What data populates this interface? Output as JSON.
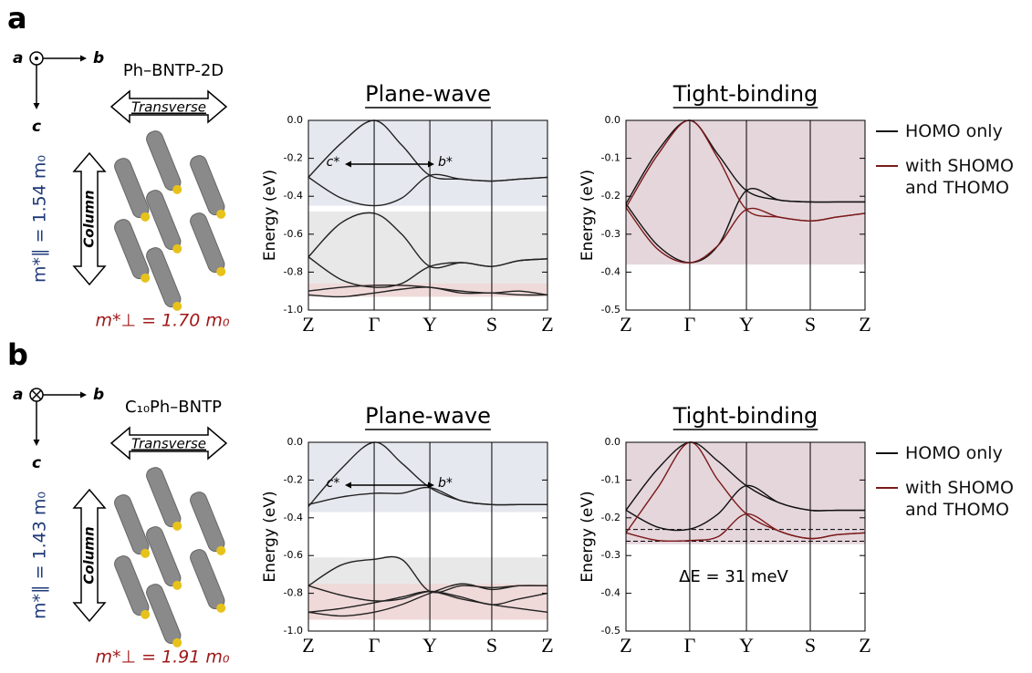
{
  "figure": {
    "panels": [
      {
        "label": "a",
        "axis_a": "a",
        "axis_b": "b",
        "axis_c": "c",
        "compound": "Ph–BNTP-2D",
        "transverse": "Transverse",
        "column": "Column",
        "m_parallel": "m*∥ = 1.54 m₀",
        "m_perp": "m*⊥ = 1.70 m₀"
      },
      {
        "label": "b",
        "axis_a": "a",
        "axis_b": "b",
        "axis_c": "c",
        "compound": "C₁₀Ph–BNTP",
        "transverse": "Transverse",
        "column": "Column",
        "m_parallel": "m*∥ = 1.43 m₀",
        "m_perp": "m*⊥ = 1.91 m₀"
      }
    ]
  },
  "chart_data": [
    {
      "type": "line",
      "title": "Plane-wave",
      "ylabel": "Energy (eV)",
      "xlim": [
        0,
        1
      ],
      "xticks": [
        {
          "value": 0,
          "label": "Z"
        },
        {
          "value": 0.275,
          "label": "Γ"
        },
        {
          "value": 0.508,
          "label": "Y"
        },
        {
          "value": 0.767,
          "label": "S"
        },
        {
          "value": 1,
          "label": "Z"
        }
      ],
      "ylim": [
        -1,
        0
      ],
      "yticks": [
        {
          "value": 0,
          "label": "0.0"
        },
        -0.2,
        -0.4,
        -0.6,
        -0.8,
        {
          "value": -1,
          "label": "-1.0"
        }
      ],
      "x": [
        0,
        0.1375,
        0.275,
        0.39,
        0.508,
        0.64,
        0.767,
        0.88,
        1
      ],
      "shading": [
        {
          "range": [
            -0.45,
            0
          ],
          "color": "#e6e8ef"
        },
        {
          "range": [
            -0.89,
            -0.48
          ],
          "color": "#e8e8e8"
        },
        {
          "range": [
            -0.93,
            -0.86
          ],
          "color": "#f0d9d9"
        }
      ],
      "annotations": [
        "c*",
        "b*"
      ],
      "series": [
        {
          "color": "#222222",
          "bands": [
            [
              -0.3,
              -0.12,
              0,
              -0.13,
              -0.29,
              -0.31,
              -0.32,
              -0.31,
              -0.3
            ],
            [
              -0.3,
              -0.41,
              -0.45,
              -0.41,
              -0.29,
              -0.31,
              -0.32,
              -0.31,
              -0.3
            ],
            [
              -0.72,
              -0.54,
              -0.49,
              -0.6,
              -0.77,
              -0.75,
              -0.77,
              -0.74,
              -0.73
            ],
            [
              -0.72,
              -0.84,
              -0.88,
              -0.86,
              -0.77,
              -0.75,
              -0.77,
              -0.74,
              -0.73
            ],
            [
              -0.9,
              -0.88,
              -0.87,
              -0.87,
              -0.88,
              -0.9,
              -0.91,
              -0.9,
              -0.92
            ],
            [
              -0.92,
              -0.93,
              -0.91,
              -0.89,
              -0.88,
              -0.91,
              -0.91,
              -0.92,
              -0.92
            ]
          ]
        }
      ]
    },
    {
      "type": "line",
      "title": "Tight-binding",
      "ylabel": "Energy (eV)",
      "xlim": [
        0,
        1
      ],
      "xticks": [
        {
          "value": 0,
          "label": "Z"
        },
        {
          "value": 0.267,
          "label": "Γ"
        },
        {
          "value": 0.504,
          "label": "Y"
        },
        {
          "value": 0.771,
          "label": "S"
        },
        {
          "value": 1,
          "label": "Z"
        }
      ],
      "ylim": [
        -0.5,
        0
      ],
      "yticks": [
        {
          "value": 0,
          "label": "0.0"
        },
        -0.1,
        -0.2,
        -0.3,
        -0.4,
        -0.5
      ],
      "x": [
        0,
        0.1335,
        0.267,
        0.385,
        0.504,
        0.64,
        0.771,
        0.88,
        1
      ],
      "shading": [
        {
          "range": [
            -0.38,
            0
          ],
          "color": "#e5d6dc"
        }
      ],
      "series": [
        {
          "name": "HOMO only",
          "color": "#111111",
          "bands": [
            [
              -0.22,
              -0.08,
              0,
              -0.09,
              -0.185,
              -0.21,
              -0.215,
              -0.215,
              -0.215
            ],
            [
              -0.22,
              -0.33,
              -0.375,
              -0.33,
              -0.185,
              -0.21,
              -0.215,
              -0.215,
              -0.215
            ]
          ]
        },
        {
          "name": "with SHOMO and THOMO",
          "color": "#7a1a1a",
          "bands": [
            [
              -0.23,
              -0.09,
              0,
              -0.1,
              -0.235,
              -0.255,
              -0.265,
              -0.255,
              -0.245
            ],
            [
              -0.23,
              -0.34,
              -0.375,
              -0.33,
              -0.235,
              -0.255,
              -0.265,
              -0.255,
              -0.245
            ]
          ]
        }
      ]
    },
    {
      "type": "line",
      "title": "Plane-wave",
      "ylabel": "Energy (eV)",
      "xlim": [
        0,
        1
      ],
      "xticks": [
        {
          "value": 0,
          "label": "Z"
        },
        {
          "value": 0.275,
          "label": "Γ"
        },
        {
          "value": 0.508,
          "label": "Y"
        },
        {
          "value": 0.767,
          "label": "S"
        },
        {
          "value": 1,
          "label": "Z"
        }
      ],
      "ylim": [
        -1,
        0
      ],
      "yticks": [
        {
          "value": 0,
          "label": "0.0"
        },
        -0.2,
        -0.4,
        -0.6,
        -0.8,
        {
          "value": -1,
          "label": "-1.0"
        }
      ],
      "x": [
        0,
        0.1375,
        0.275,
        0.39,
        0.508,
        0.64,
        0.767,
        0.88,
        1
      ],
      "shading": [
        {
          "range": [
            -0.37,
            0
          ],
          "color": "#e6e8ef"
        },
        {
          "range": [
            -0.84,
            -0.61
          ],
          "color": "#e8e8e8"
        },
        {
          "range": [
            -0.94,
            -0.75
          ],
          "color": "#f0d9d9"
        }
      ],
      "annotations": [
        "c*",
        "b*"
      ],
      "series": [
        {
          "color": "#222222",
          "bands": [
            [
              -0.34,
              -0.14,
              0,
              -0.11,
              -0.24,
              -0.31,
              -0.33,
              -0.33,
              -0.33
            ],
            [
              -0.33,
              -0.29,
              -0.27,
              -0.27,
              -0.24,
              -0.31,
              -0.33,
              -0.33,
              -0.33
            ],
            [
              -0.76,
              -0.65,
              -0.62,
              -0.62,
              -0.79,
              -0.76,
              -0.77,
              -0.76,
              -0.76
            ],
            [
              -0.76,
              -0.81,
              -0.84,
              -0.83,
              -0.79,
              -0.82,
              -0.86,
              -0.83,
              -0.8
            ],
            [
              -0.9,
              -0.88,
              -0.85,
              -0.82,
              -0.79,
              -0.83,
              -0.86,
              -0.88,
              -0.9
            ],
            [
              -0.9,
              -0.92,
              -0.9,
              -0.86,
              -0.8,
              -0.75,
              -0.78,
              -0.76,
              -0.76
            ]
          ]
        }
      ]
    },
    {
      "type": "line",
      "title": "Tight-binding",
      "ylabel": "Energy (eV)",
      "xlim": [
        0,
        1
      ],
      "xticks": [
        {
          "value": 0,
          "label": "Z"
        },
        {
          "value": 0.267,
          "label": "Γ"
        },
        {
          "value": 0.504,
          "label": "Y"
        },
        {
          "value": 0.771,
          "label": "S"
        },
        {
          "value": 1,
          "label": "Z"
        }
      ],
      "ylim": [
        -0.5,
        0
      ],
      "yticks": [
        {
          "value": 0,
          "label": "0.0"
        },
        -0.1,
        -0.2,
        -0.3,
        -0.4,
        -0.5
      ],
      "x": [
        0,
        0.1335,
        0.267,
        0.385,
        0.504,
        0.64,
        0.771,
        0.88,
        1
      ],
      "shading": [
        {
          "range": [
            -0.27,
            0
          ],
          "color": "#e5d6dc"
        }
      ],
      "reference_lines": [
        -0.231,
        -0.262
      ],
      "annotation": "ΔE = 31 meV",
      "series": [
        {
          "name": "HOMO only",
          "color": "#111111",
          "bands": [
            [
              -0.18,
              -0.07,
              0,
              -0.05,
              -0.115,
              -0.16,
              -0.18,
              -0.18,
              -0.18
            ],
            [
              -0.18,
              -0.225,
              -0.23,
              -0.19,
              -0.115,
              -0.16,
              -0.18,
              -0.18,
              -0.18
            ]
          ]
        },
        {
          "name": "with SHOMO and THOMO",
          "color": "#7a1a1a",
          "bands": [
            [
              -0.24,
              -0.12,
              0,
              -0.1,
              -0.19,
              -0.235,
              -0.255,
              -0.245,
              -0.24
            ],
            [
              -0.24,
              -0.26,
              -0.26,
              -0.25,
              -0.19,
              -0.235,
              -0.255,
              -0.245,
              -0.24
            ]
          ]
        }
      ]
    }
  ]
}
